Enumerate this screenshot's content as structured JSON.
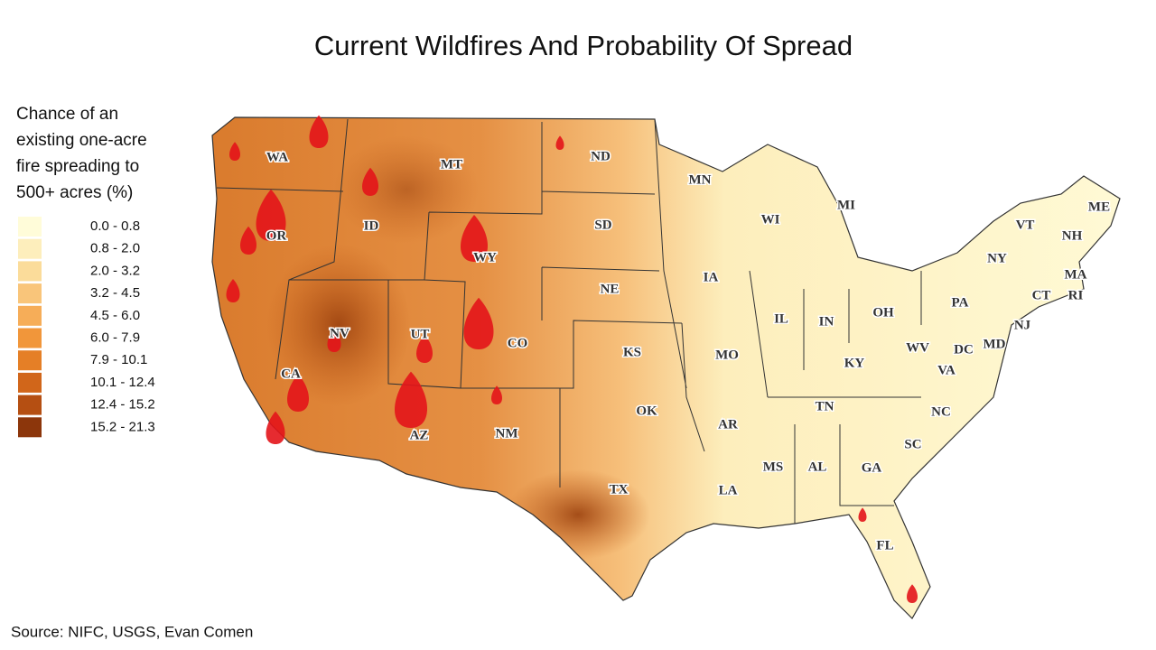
{
  "title": "Current Wildfires And Probability Of Spread",
  "legend": {
    "title_lines": [
      "Chance of an",
      "existing one-acre",
      "fire spreading to",
      "500+ acres (%)"
    ],
    "items": [
      {
        "label": "0.0 - 0.8",
        "color": "#fffcd9"
      },
      {
        "label": "0.8 - 2.0",
        "color": "#fdeebc"
      },
      {
        "label": "2.0 - 3.2",
        "color": "#fbdc9a"
      },
      {
        "label": "3.2 - 4.5",
        "color": "#f9c57a"
      },
      {
        "label": "4.5 - 6.0",
        "color": "#f6ad58"
      },
      {
        "label": "6.0 - 7.9",
        "color": "#f1963a"
      },
      {
        "label": "7.9 - 10.1",
        "color": "#e57f26"
      },
      {
        "label": "10.1 - 12.4",
        "color": "#d1661a"
      },
      {
        "label": "12.4 - 15.2",
        "color": "#b54f12"
      },
      {
        "label": "15.2 - 21.3",
        "color": "#8c360b"
      }
    ]
  },
  "states": [
    "WA",
    "OR",
    "CA",
    "NV",
    "ID",
    "MT",
    "WY",
    "UT",
    "AZ",
    "CO",
    "NM",
    "ND",
    "SD",
    "NE",
    "KS",
    "OK",
    "TX",
    "MN",
    "IA",
    "MO",
    "AR",
    "LA",
    "WI",
    "IL",
    "MI",
    "IN",
    "OH",
    "KY",
    "TN",
    "MS",
    "AL",
    "GA",
    "FL",
    "SC",
    "NC",
    "VA",
    "WV",
    "DC",
    "MD",
    "PA",
    "NY",
    "NJ",
    "VT",
    "NH",
    "ME",
    "MA",
    "CT",
    "RI"
  ],
  "source": "Source: NIFC, USGS, Evan Comen"
}
